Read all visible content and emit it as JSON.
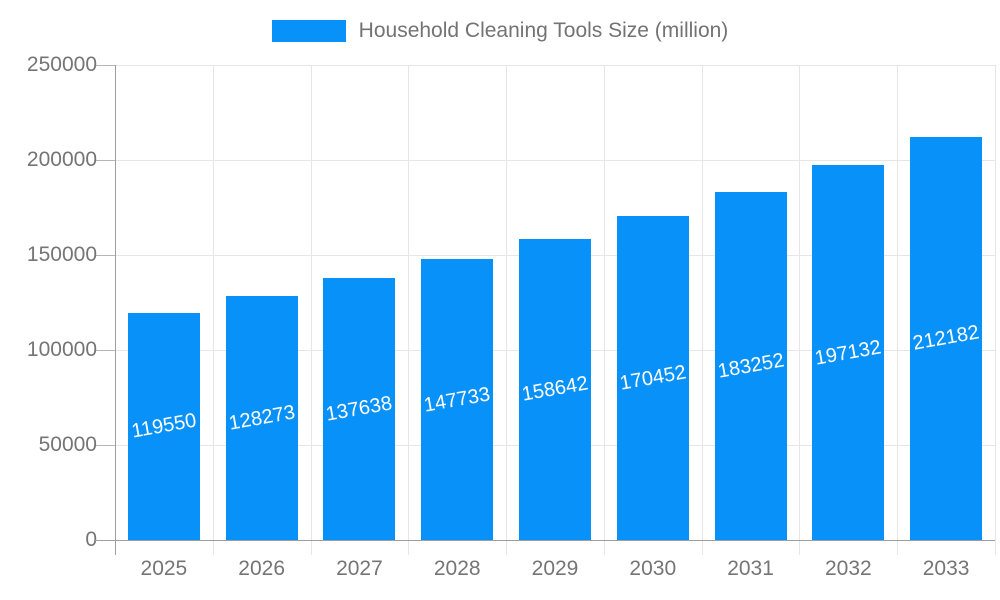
{
  "legend": {
    "label": "Household Cleaning Tools Size (million)",
    "swatch_color": "#0991fa"
  },
  "chart_data": {
    "type": "bar",
    "title": "Household Cleaning Tools Size (million)",
    "categories": [
      "2025",
      "2026",
      "2027",
      "2028",
      "2029",
      "2030",
      "2031",
      "2032",
      "2033"
    ],
    "values": [
      119550,
      128273,
      137638,
      147733,
      158642,
      170452,
      183252,
      197132,
      212182
    ],
    "xlabel": "",
    "ylabel": "",
    "ylim": [
      0,
      250000
    ],
    "ytick_interval": 50000,
    "ytick_labels": [
      "0",
      "50000",
      "100000",
      "150000",
      "200000",
      "250000"
    ],
    "grid": true,
    "legend_position": "top",
    "bar_color": "#0991fa",
    "value_label_color": "#ffffff",
    "axis_label_color": "#757575",
    "grid_color": "#e6e6e6",
    "axis_line_color": "#9e9e9e"
  }
}
